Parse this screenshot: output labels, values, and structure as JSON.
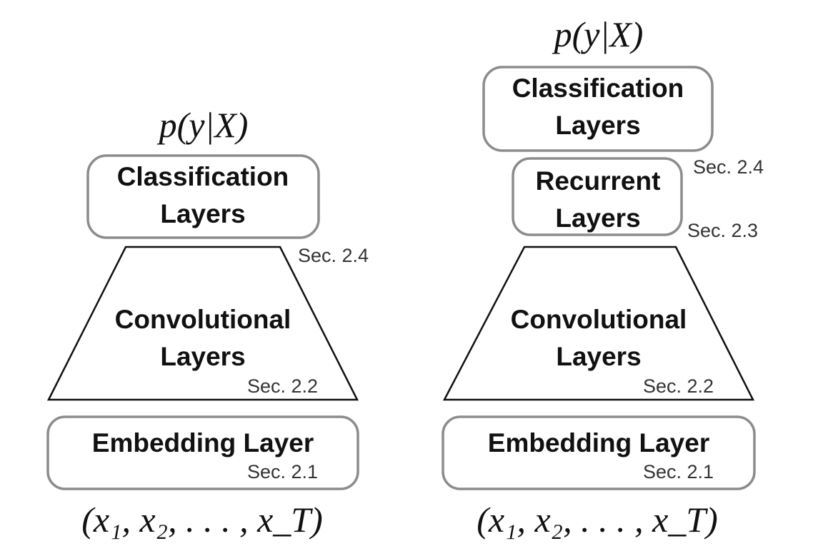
{
  "left": {
    "output": "p(y|X)",
    "classification": {
      "line1": "Classification",
      "line2": "Layers",
      "sec": "Sec. 2.4"
    },
    "convolutional": {
      "line1": "Convolutional",
      "line2": "Layers",
      "sec": "Sec. 2.2"
    },
    "embedding": {
      "label": "Embedding Layer",
      "sec": "Sec. 2.1"
    },
    "input": "(x₁, x₂, . . . , x_T)"
  },
  "right": {
    "output": "p(y|X)",
    "classification": {
      "line1": "Classification",
      "line2": "Layers",
      "sec": "Sec. 2.4"
    },
    "recurrent": {
      "line1": "Recurrent",
      "line2": "Layers",
      "sec": "Sec. 2.3"
    },
    "convolutional": {
      "line1": "Convolutional",
      "line2": "Layers",
      "sec": "Sec. 2.2"
    },
    "embedding": {
      "label": "Embedding Layer",
      "sec": "Sec. 2.1"
    },
    "input": "(x₁, x₂, . . . , x_T)"
  }
}
